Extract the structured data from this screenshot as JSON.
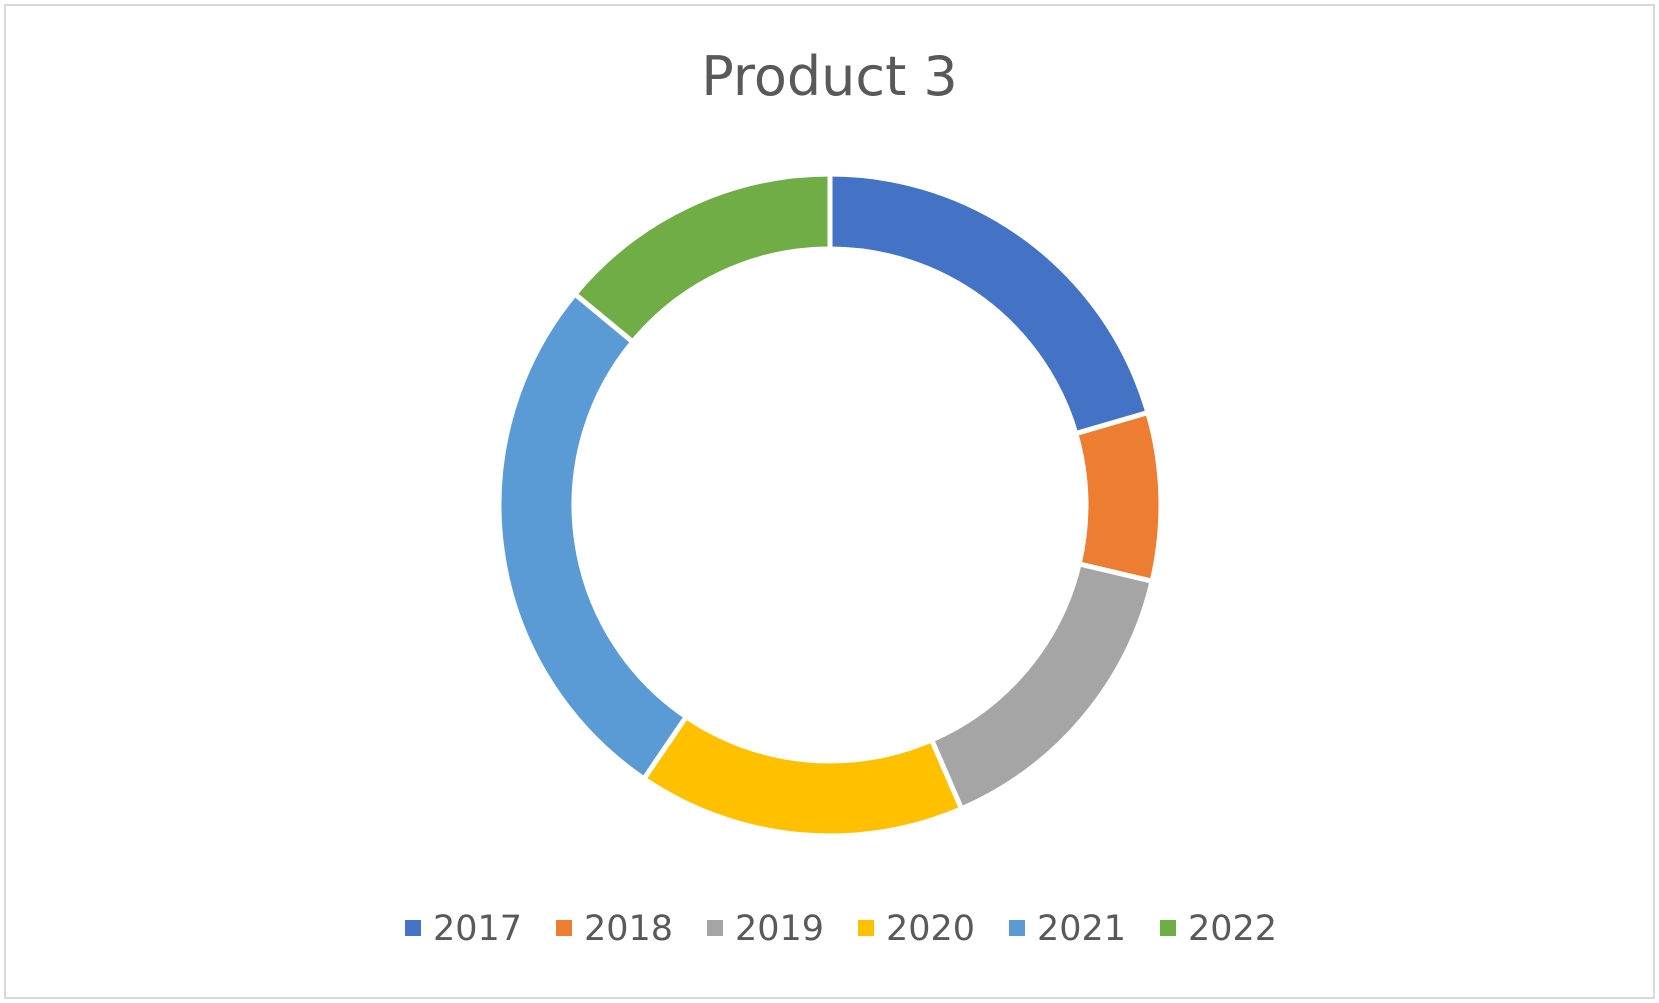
{
  "chart_data": {
    "type": "pie",
    "variant": "doughnut",
    "title": "Product 3",
    "categories": [
      "2017",
      "2018",
      "2019",
      "2020",
      "2021",
      "2022"
    ],
    "values": [
      20.5,
      8.2,
      14.8,
      16.0,
      26.5,
      14.0
    ],
    "colors": [
      "#4472C4",
      "#ED7D31",
      "#A5A5A5",
      "#FFC000",
      "#5B9BD5",
      "#70AD47"
    ],
    "legend": "bottom"
  }
}
